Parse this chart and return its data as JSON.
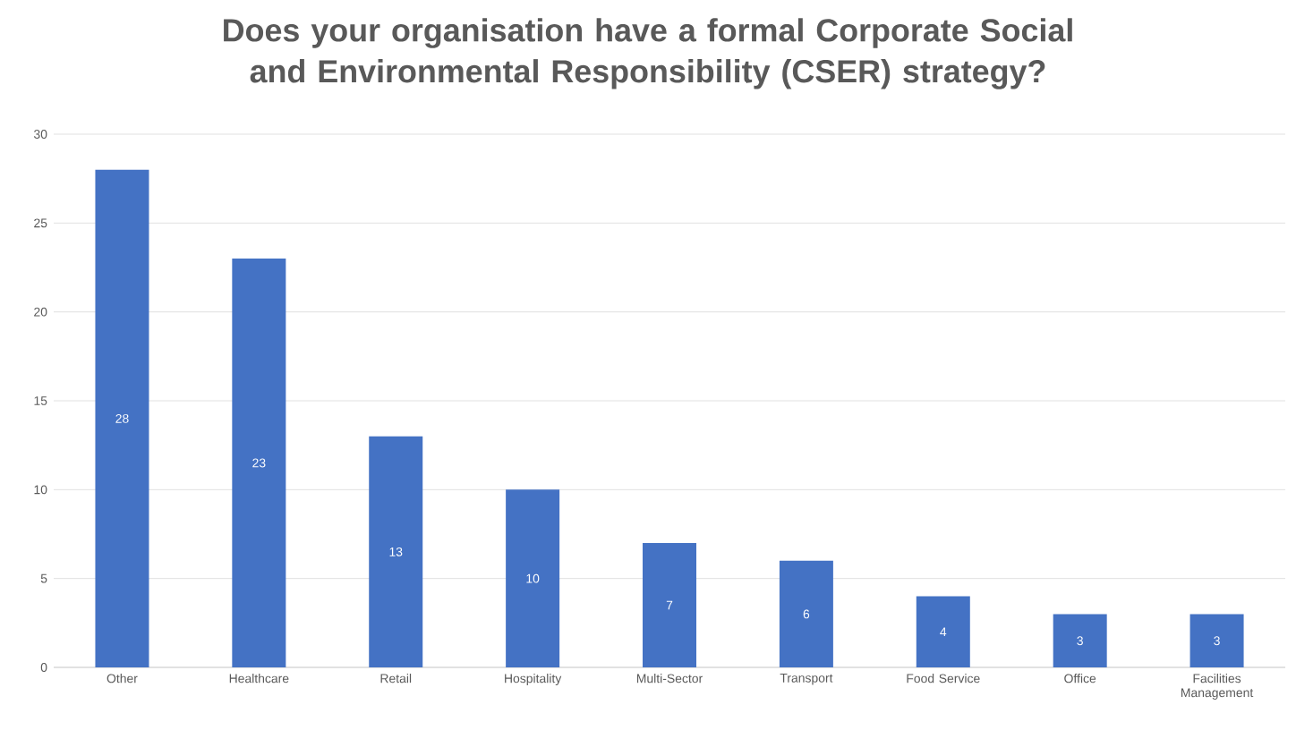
{
  "chart_data": {
    "type": "bar",
    "title": "Does your organisation have a formal Corporate Social and Environmental Responsibility (CSER) strategy?",
    "categories": [
      "Other",
      "Healthcare",
      "Retail",
      "Hospitality",
      "Multi-Sector",
      "Transport",
      "Food Service",
      "Office",
      "Facilities Management"
    ],
    "values": [
      28,
      23,
      13,
      10,
      7,
      6,
      4,
      3,
      3
    ],
    "color": "#4472c4",
    "ylim": [
      0,
      30
    ],
    "yticks": [
      0,
      5,
      10,
      15,
      20,
      25,
      30
    ],
    "grid": "y",
    "data_labels": true
  }
}
